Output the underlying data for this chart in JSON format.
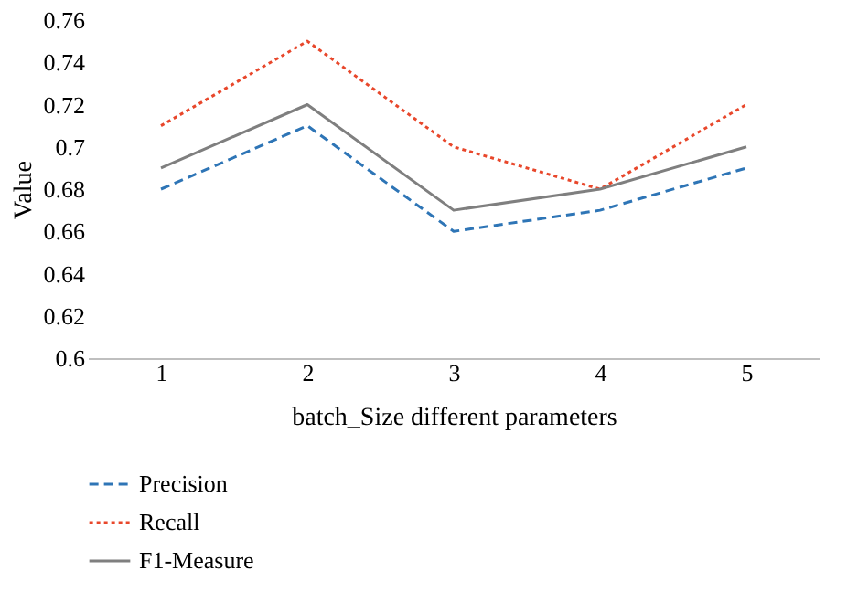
{
  "chart_data": {
    "type": "line",
    "xlabel": "batch_Size different parameters",
    "ylabel": "Value",
    "categories": [
      "1",
      "2",
      "3",
      "4",
      "5"
    ],
    "series": [
      {
        "name": "Precision",
        "color": "#2e75b6",
        "line_style": "dashed",
        "values": [
          0.68,
          0.71,
          0.66,
          0.67,
          0.69
        ]
      },
      {
        "name": "Recall",
        "color": "#e8472b",
        "line_style": "dotted",
        "values": [
          0.71,
          0.75,
          0.7,
          0.68,
          0.72
        ]
      },
      {
        "name": "F1-Measure",
        "color": "#7f7f7f",
        "line_style": "solid",
        "values": [
          0.69,
          0.72,
          0.67,
          0.68,
          0.7
        ]
      }
    ],
    "ylim": [
      0.6,
      0.76
    ],
    "yticks": [
      0.6,
      0.62,
      0.64,
      0.66,
      0.68,
      0.7,
      0.72,
      0.74,
      0.76
    ],
    "grid": false,
    "legend": "bottom",
    "marker": "none"
  }
}
